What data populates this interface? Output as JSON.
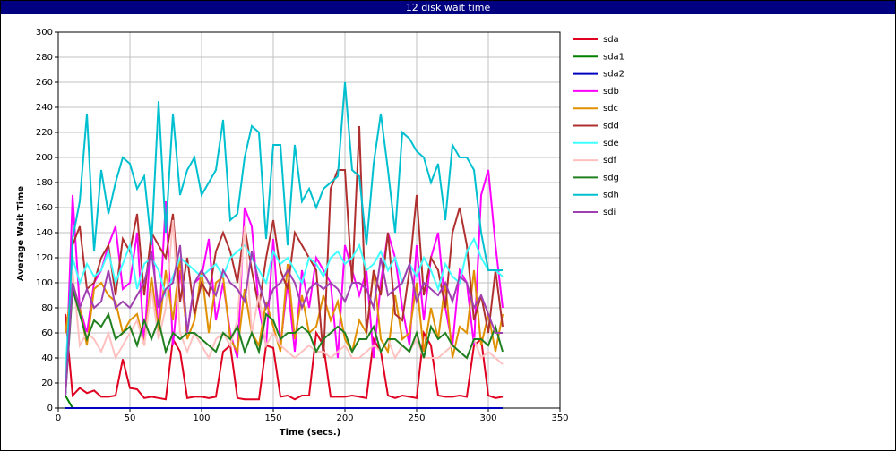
{
  "chart_data": {
    "type": "line",
    "title": "12 disk wait time",
    "x_label": "Time (secs.)",
    "y_label": "Average Wait Time",
    "x": [
      5,
      10,
      15,
      20,
      25,
      30,
      35,
      40,
      45,
      50,
      55,
      60,
      65,
      70,
      75,
      80,
      85,
      90,
      95,
      100,
      105,
      110,
      115,
      120,
      125,
      130,
      135,
      140,
      145,
      150,
      155,
      160,
      165,
      170,
      175,
      180,
      185,
      190,
      195,
      200,
      205,
      210,
      215,
      220,
      225,
      230,
      235,
      240,
      245,
      250,
      255,
      260,
      265,
      270,
      275,
      280,
      285,
      290,
      295,
      300,
      305,
      310
    ],
    "xlim": [
      0,
      350
    ],
    "xticks": [
      0,
      50,
      100,
      150,
      200,
      250,
      300,
      350
    ],
    "ylim": [
      0,
      300
    ],
    "yticks": [
      0,
      20,
      40,
      60,
      80,
      100,
      120,
      140,
      160,
      180,
      200,
      220,
      240,
      260,
      280,
      300
    ],
    "grid": true,
    "legend": "right",
    "series": [
      {
        "name": "sda",
        "color": "#e00020",
        "values": [
          75,
          10,
          16,
          12,
          14,
          9,
          9,
          10,
          39,
          16,
          15,
          8,
          9,
          8,
          7,
          55,
          45,
          8,
          9,
          9,
          8,
          9,
          45,
          50,
          8,
          7,
          7,
          7,
          50,
          48,
          9,
          10,
          7,
          10,
          10,
          60,
          50,
          9,
          9,
          9,
          10,
          9,
          8,
          55,
          45,
          10,
          8,
          10,
          9,
          8,
          60,
          50,
          10,
          9,
          9,
          10,
          9,
          50,
          55,
          10,
          8,
          9
        ]
      },
      {
        "name": "sda1",
        "color": "#008000",
        "values": [
          10,
          0,
          0,
          0,
          0,
          0,
          0,
          0,
          0,
          0,
          0,
          0,
          0,
          0,
          0,
          0,
          0,
          0,
          0,
          0,
          0,
          0,
          0,
          0,
          0,
          0,
          0,
          0,
          0,
          0,
          0,
          0,
          0,
          0,
          0,
          0,
          0,
          0,
          0,
          0,
          0,
          0,
          0,
          0,
          0,
          0,
          0,
          0,
          0,
          0,
          0,
          0,
          0,
          0,
          0,
          0,
          0,
          0,
          0,
          0,
          0,
          0
        ]
      },
      {
        "name": "sda2",
        "color": "#0000c0",
        "values": [
          0,
          0,
          0,
          0,
          0,
          0,
          0,
          0,
          0,
          0,
          0,
          0,
          0,
          0,
          0,
          0,
          0,
          0,
          0,
          0,
          0,
          0,
          0,
          0,
          0,
          0,
          0,
          0,
          0,
          0,
          0,
          0,
          0,
          0,
          0,
          0,
          0,
          0,
          0,
          0,
          0,
          0,
          0,
          0,
          0,
          0,
          0,
          0,
          0,
          0,
          0,
          0,
          0,
          0,
          0,
          0,
          0,
          0,
          0,
          0,
          0,
          0
        ]
      },
      {
        "name": "sdb",
        "color": "#ff00ff",
        "values": [
          10,
          170,
          80,
          60,
          100,
          110,
          130,
          145,
          95,
          100,
          140,
          50,
          145,
          60,
          165,
          50,
          110,
          60,
          100,
          105,
          135,
          70,
          100,
          60,
          40,
          160,
          145,
          80,
          50,
          135,
          50,
          100,
          45,
          110,
          80,
          120,
          110,
          100,
          40,
          130,
          110,
          90,
          110,
          40,
          100,
          140,
          120,
          80,
          50,
          130,
          70,
          120,
          140,
          80,
          50,
          110,
          100,
          50,
          170,
          190,
          130,
          80
        ]
      },
      {
        "name": "sdc",
        "color": "#e09000",
        "values": [
          60,
          100,
          80,
          50,
          95,
          100,
          90,
          85,
          60,
          70,
          75,
          50,
          105,
          60,
          110,
          70,
          120,
          55,
          70,
          110,
          60,
          100,
          105,
          55,
          45,
          95,
          60,
          50,
          85,
          65,
          45,
          115,
          55,
          90,
          60,
          65,
          90,
          70,
          85,
          55,
          45,
          70,
          60,
          110,
          55,
          45,
          90,
          55,
          60,
          100,
          45,
          80,
          55,
          100,
          40,
          65,
          60,
          110,
          50,
          75,
          45,
          75
        ]
      },
      {
        "name": "sdd",
        "color": "#b03030",
        "values": [
          10,
          130,
          145,
          95,
          100,
          120,
          130,
          90,
          135,
          125,
          155,
          90,
          140,
          130,
          120,
          155,
          85,
          120,
          75,
          100,
          90,
          125,
          140,
          125,
          100,
          145,
          110,
          80,
          120,
          150,
          110,
          95,
          140,
          130,
          120,
          110,
          40,
          175,
          190,
          190,
          100,
          225,
          60,
          110,
          90,
          140,
          75,
          70,
          110,
          170,
          90,
          120,
          110,
          80,
          140,
          160,
          130,
          70,
          90,
          60,
          110,
          65
        ]
      },
      {
        "name": "sde",
        "color": "#40ffff",
        "values": [
          30,
          120,
          100,
          115,
          105,
          110,
          125,
          100,
          115,
          130,
          95,
          115,
          120,
          110,
          90,
          105,
          120,
          115,
          110,
          105,
          110,
          115,
          105,
          120,
          125,
          130,
          120,
          110,
          100,
          125,
          115,
          120,
          110,
          100,
          120,
          115,
          105,
          120,
          125,
          115,
          120,
          130,
          110,
          115,
          125,
          110,
          120,
          100,
          115,
          105,
          120,
          110,
          95,
          115,
          105,
          100,
          125,
          135,
          120,
          110,
          110,
          105
        ]
      },
      {
        "name": "sdf",
        "color": "#ffc0c0",
        "values": [
          20,
          110,
          50,
          60,
          55,
          45,
          60,
          40,
          50,
          60,
          70,
          50,
          95,
          55,
          80,
          150,
          60,
          45,
          60,
          50,
          40,
          55,
          60,
          50,
          70,
          145,
          60,
          90,
          50,
          60,
          50,
          45,
          40,
          45,
          50,
          45,
          45,
          40,
          45,
          50,
          40,
          40,
          45,
          50,
          45,
          55,
          40,
          50,
          45,
          55,
          40,
          40,
          40,
          45,
          50,
          45,
          40,
          55,
          40,
          45,
          40,
          35
        ]
      },
      {
        "name": "sdg",
        "color": "#208020",
        "values": [
          10,
          95,
          75,
          55,
          70,
          65,
          75,
          55,
          60,
          65,
          50,
          70,
          55,
          70,
          45,
          60,
          55,
          60,
          60,
          55,
          50,
          45,
          60,
          55,
          65,
          45,
          60,
          45,
          75,
          70,
          55,
          60,
          60,
          65,
          60,
          45,
          55,
          60,
          65,
          60,
          45,
          55,
          55,
          65,
          45,
          55,
          55,
          50,
          45,
          60,
          40,
          65,
          55,
          60,
          50,
          45,
          40,
          55,
          55,
          50,
          65,
          45
        ]
      },
      {
        "name": "sdh",
        "color": "#00c0d0",
        "values": [
          10,
          135,
          165,
          235,
          125,
          190,
          155,
          180,
          200,
          195,
          175,
          185,
          130,
          245,
          140,
          235,
          170,
          190,
          200,
          170,
          180,
          190,
          230,
          150,
          155,
          200,
          225,
          220,
          135,
          210,
          210,
          130,
          210,
          165,
          175,
          160,
          175,
          180,
          185,
          260,
          190,
          185,
          130,
          195,
          235,
          190,
          140,
          220,
          215,
          205,
          200,
          180,
          195,
          150,
          210,
          200,
          200,
          190,
          140,
          110,
          110,
          110
        ]
      },
      {
        "name": "sdi",
        "color": "#a040b0",
        "values": [
          10,
          100,
          80,
          95,
          80,
          85,
          110,
          80,
          85,
          80,
          90,
          100,
          125,
          80,
          95,
          100,
          130,
          60,
          100,
          110,
          100,
          90,
          110,
          100,
          95,
          85,
          125,
          100,
          80,
          95,
          100,
          110,
          100,
          80,
          95,
          100,
          95,
          100,
          95,
          85,
          100,
          100,
          95,
          80,
          120,
          90,
          95,
          100,
          115,
          85,
          100,
          95,
          90,
          100,
          85,
          105,
          100,
          80,
          90,
          75,
          60,
          60
        ]
      }
    ]
  }
}
